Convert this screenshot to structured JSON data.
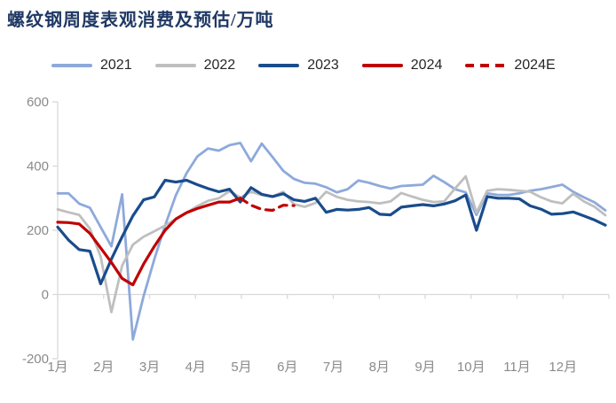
{
  "chart_data": {
    "type": "line",
    "title": "螺纹钢周度表观消费及预估/万吨",
    "y_unit": "万吨",
    "x_unit": "week",
    "weeks_per_year": 52,
    "ylim": [
      -200,
      600
    ],
    "y_ticks": [
      600,
      400,
      200,
      0,
      -200
    ],
    "x_labels": [
      "1月",
      "2月",
      "3月",
      "4月",
      "5月",
      "6月",
      "7月",
      "8月",
      "9月",
      "10月",
      "11月",
      "12月"
    ],
    "grid": "zero-axis-only",
    "legend_position": "top",
    "axis_color": "#D9D9D9",
    "label_color": "#8A8A8A",
    "title_color": "#1F3864",
    "series": [
      {
        "name": "2021",
        "color": "#8EA9DB",
        "dash": false,
        "start_week": 1,
        "values": [
          315,
          315,
          283,
          270,
          210,
          150,
          312,
          -140,
          -5,
          110,
          215,
          309,
          378,
          430,
          455,
          448,
          465,
          472,
          415,
          470,
          428,
          385,
          360,
          348,
          345,
          334,
          318,
          328,
          355,
          348,
          338,
          330,
          338,
          340,
          342,
          370,
          350,
          328,
          318,
          248,
          315,
          310,
          310,
          315,
          323,
          328,
          335,
          342,
          320,
          303,
          287,
          262
        ]
      },
      {
        "name": "2022",
        "color": "#BFBFBF",
        "dash": false,
        "start_week": 1,
        "values": [
          265,
          256,
          248,
          205,
          118,
          -55,
          90,
          155,
          180,
          197,
          215,
          235,
          255,
          275,
          292,
          300,
          322,
          302,
          320,
          310,
          305,
          320,
          281,
          273,
          285,
          320,
          304,
          295,
          290,
          288,
          284,
          290,
          316,
          305,
          295,
          288,
          290,
          330,
          368,
          255,
          323,
          328,
          326,
          323,
          320,
          303,
          290,
          284,
          314,
          290,
          273,
          247
        ]
      },
      {
        "name": "2023",
        "color": "#1A4C8B",
        "dash": false,
        "start_week": 1,
        "values": [
          210,
          170,
          140,
          135,
          33,
          110,
          180,
          245,
          295,
          304,
          356,
          350,
          356,
          342,
          330,
          320,
          328,
          288,
          333,
          312,
          305,
          314,
          295,
          290,
          300,
          256,
          265,
          263,
          265,
          271,
          250,
          248,
          272,
          276,
          280,
          276,
          282,
          292,
          310,
          200,
          305,
          300,
          300,
          298,
          276,
          266,
          250,
          252,
          257,
          245,
          232,
          216
        ]
      },
      {
        "name": "2024",
        "color": "#C00000",
        "dash": false,
        "start_week": 1,
        "values": [
          225,
          224,
          220,
          190,
          145,
          100,
          50,
          30,
          95,
          150,
          200,
          235,
          255,
          268,
          278,
          288,
          288,
          300
        ]
      },
      {
        "name": "2024E",
        "color": "#C00000",
        "dash": true,
        "start_week": 18,
        "values": [
          300,
          278,
          265,
          262,
          278,
          277
        ]
      }
    ]
  }
}
